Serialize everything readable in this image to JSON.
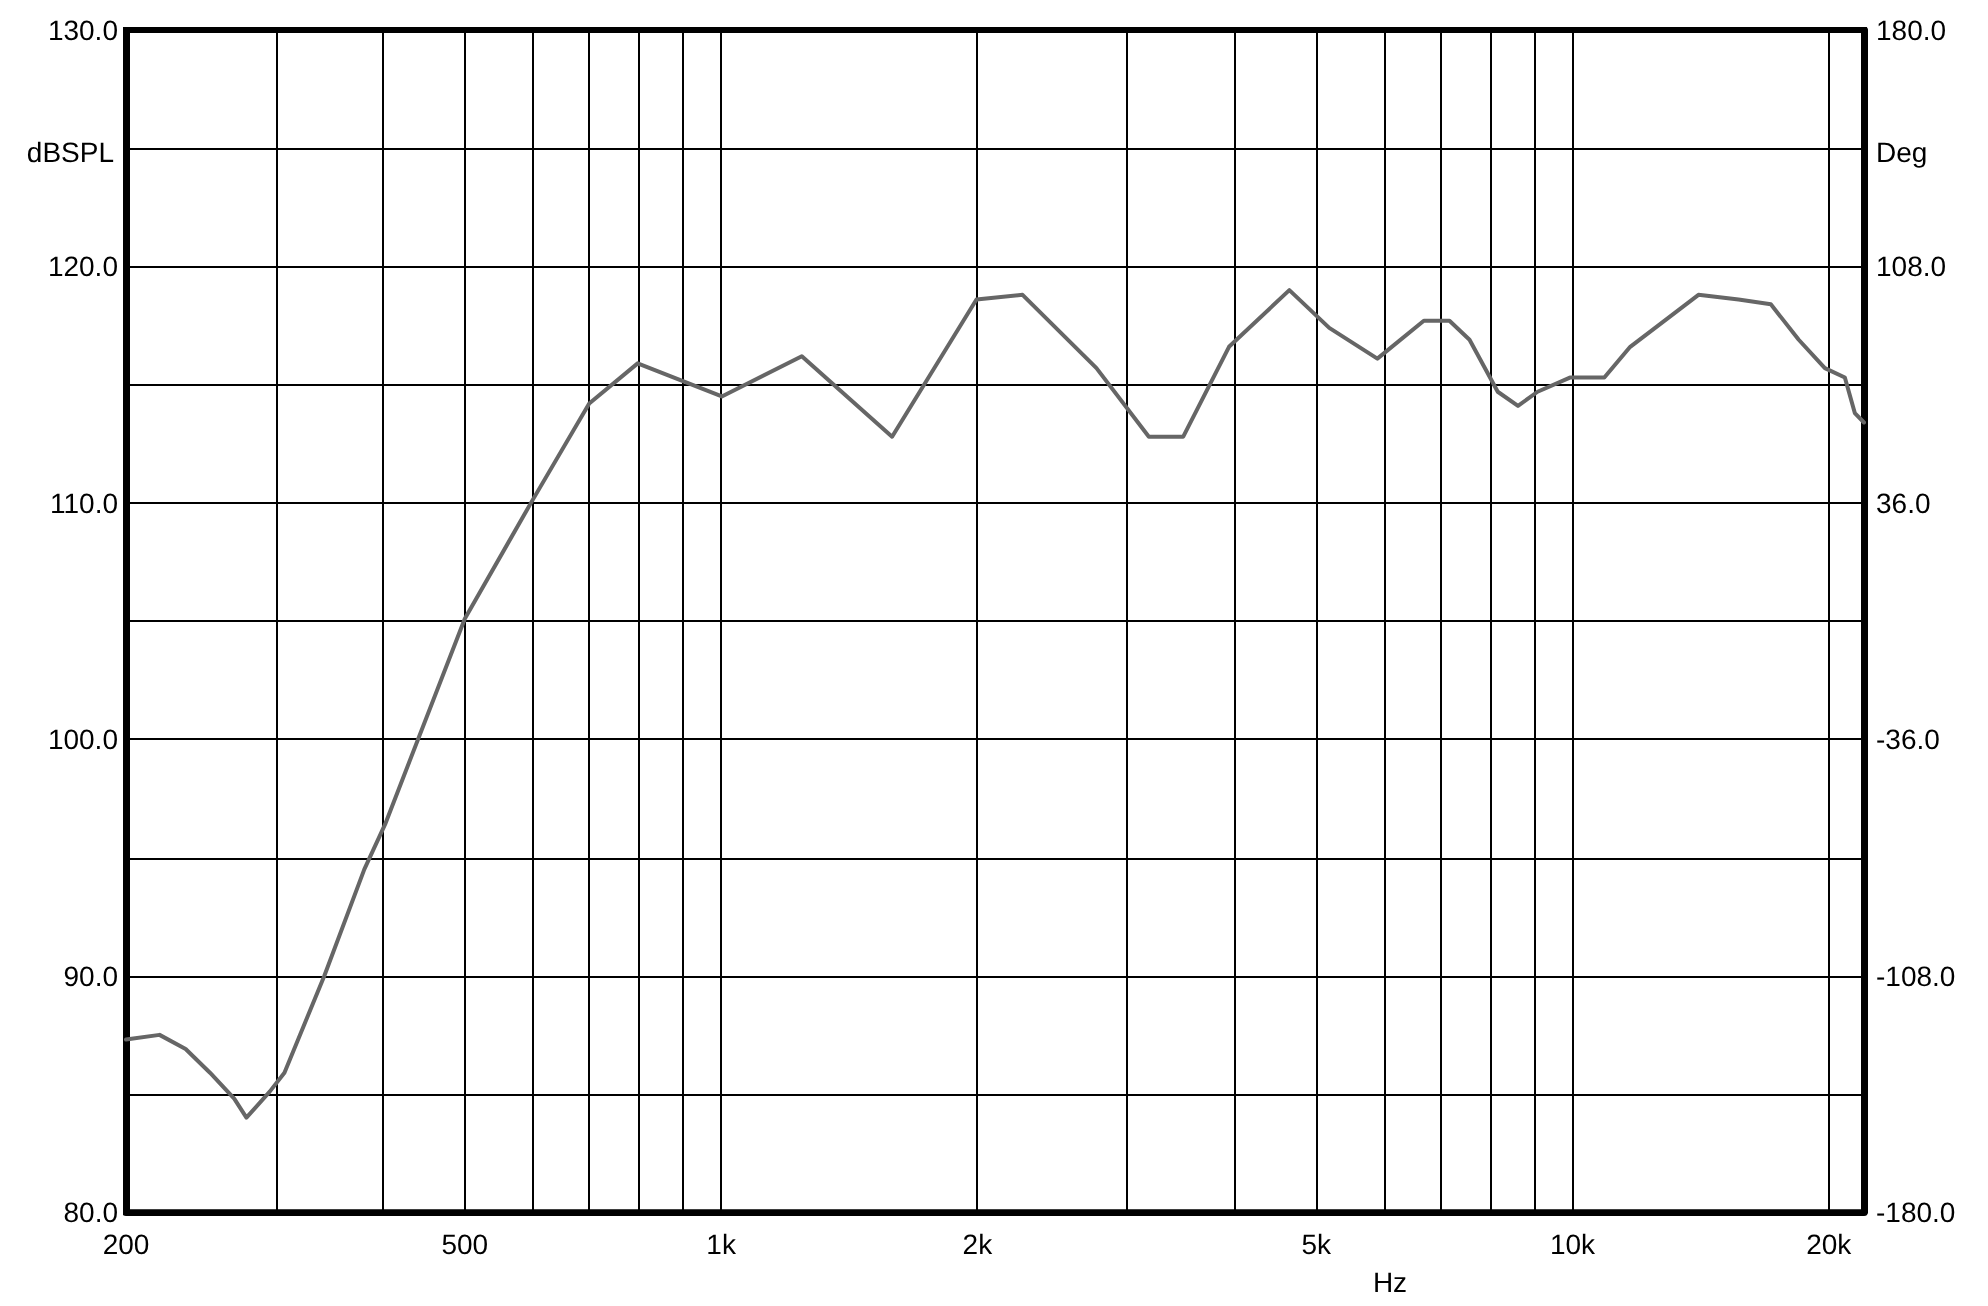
{
  "chart_data": {
    "type": "line",
    "xlabel": "Hz",
    "ylabel": "dBSPL",
    "y2label": "Deg",
    "log": "x",
    "grid": true,
    "marker": "none",
    "line_style": "solid",
    "xlim": [
      200,
      22000
    ],
    "xticks": [
      {
        "value": 200,
        "label": "200"
      },
      {
        "value": 300,
        "label": null
      },
      {
        "value": 400,
        "label": null
      },
      {
        "value": 500,
        "label": "500"
      },
      {
        "value": 600,
        "label": null
      },
      {
        "value": 700,
        "label": null
      },
      {
        "value": 800,
        "label": null
      },
      {
        "value": 900,
        "label": null
      },
      {
        "value": 1000,
        "label": "1k"
      },
      {
        "value": 2000,
        "label": "2k"
      },
      {
        "value": 3000,
        "label": null
      },
      {
        "value": 4000,
        "label": null
      },
      {
        "value": 5000,
        "label": "5k"
      },
      {
        "value": 6000,
        "label": null
      },
      {
        "value": 7000,
        "label": null
      },
      {
        "value": 8000,
        "label": null
      },
      {
        "value": 9000,
        "label": null
      },
      {
        "value": 10000,
        "label": "10k"
      },
      {
        "value": 20000,
        "label": "20k"
      }
    ],
    "ylim": [
      80,
      130
    ],
    "yticks": [
      {
        "value": 80,
        "label": "80.0"
      },
      {
        "value": 85,
        "label": null
      },
      {
        "value": 90,
        "label": "90.0"
      },
      {
        "value": 95,
        "label": null
      },
      {
        "value": 100,
        "label": "100.0"
      },
      {
        "value": 105,
        "label": null
      },
      {
        "value": 110,
        "label": "110.0"
      },
      {
        "value": 115,
        "label": null
      },
      {
        "value": 120,
        "label": "120.0"
      },
      {
        "value": 125,
        "label": null
      },
      {
        "value": 130,
        "label": "130.0"
      }
    ],
    "y2lim": [
      -180,
      180
    ],
    "y2ticks": [
      {
        "value": -180,
        "label": "-180.0"
      },
      {
        "value": -108,
        "label": "-108.0"
      },
      {
        "value": -36,
        "label": "-36.0"
      },
      {
        "value": 36,
        "label": "36.0"
      },
      {
        "value": 108,
        "label": "108.0"
      },
      {
        "value": 180,
        "label": "180.0"
      }
    ],
    "series": [
      {
        "color": "#666666",
        "x": [
          200,
          219,
          235,
          251,
          268,
          277,
          295,
          307,
          342,
          381,
          403,
          500,
          598,
          700,
          798,
          1002,
          1244,
          1588,
          1995,
          2260,
          2760,
          3180,
          3490,
          3950,
          4650,
          5180,
          5900,
          6690,
          7170,
          7570,
          8170,
          8630,
          9100,
          9930,
          10900,
          11690,
          14060,
          15670,
          17100,
          18440,
          19790,
          20890,
          21460,
          22000
        ],
        "values": [
          87.3,
          87.5,
          86.9,
          85.9,
          84.8,
          84.0,
          85.1,
          85.9,
          90.0,
          94.5,
          96.4,
          105.1,
          110.0,
          114.2,
          115.9,
          114.5,
          116.2,
          112.8,
          118.6,
          118.8,
          115.7,
          112.8,
          112.8,
          116.6,
          119.0,
          117.4,
          116.1,
          117.7,
          117.7,
          116.9,
          114.7,
          114.1,
          114.7,
          115.3,
          115.3,
          116.6,
          118.8,
          118.6,
          118.4,
          116.9,
          115.7,
          115.3,
          113.8,
          113.4
        ]
      }
    ]
  }
}
